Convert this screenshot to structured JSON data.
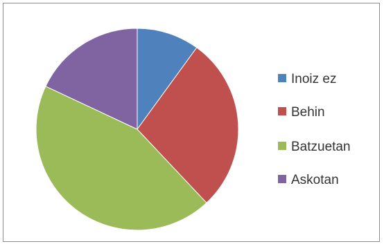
{
  "chart_data": {
    "type": "pie",
    "title": "",
    "start_angle_deg": 0,
    "direction": "clockwise",
    "legend_position": "right",
    "series": [
      {
        "values": [
          10,
          28,
          44,
          18
        ],
        "labels": [
          "Inoiz ez",
          "Behin",
          "Batzuetan",
          "Askotan"
        ],
        "colors": [
          "#4F81BD",
          "#C0504D",
          "#9BBB59",
          "#8064A2"
        ]
      }
    ]
  }
}
